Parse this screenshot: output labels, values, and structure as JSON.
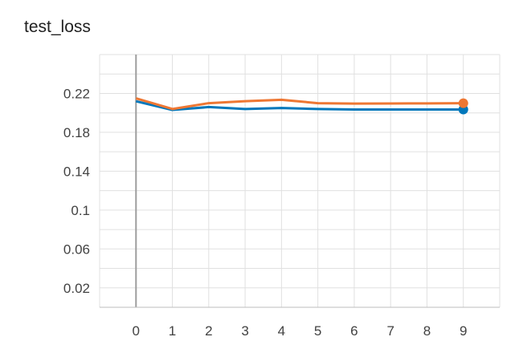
{
  "chart_data": {
    "type": "line",
    "title": "test_loss",
    "xlabel": "",
    "ylabel": "",
    "x": [
      0,
      1,
      2,
      3,
      4,
      5,
      6,
      7,
      8,
      9
    ],
    "xlim": [
      -1,
      10
    ],
    "ylim": [
      0.0,
      0.26
    ],
    "x_ticks": [
      "0",
      "1",
      "2",
      "3",
      "4",
      "5",
      "6",
      "7",
      "8",
      "9"
    ],
    "y_ticks": [
      "0.02",
      "0.06",
      "0.1",
      "0.14",
      "0.18",
      "0.22"
    ],
    "y_tick_values": [
      0.02,
      0.06,
      0.1,
      0.14,
      0.18,
      0.22
    ],
    "grid": true,
    "series": [
      {
        "color": "#0077bb",
        "values": [
          0.212,
          0.203,
          0.206,
          0.204,
          0.205,
          0.204,
          0.2035,
          0.2035,
          0.2035,
          0.2035
        ]
      },
      {
        "color": "#ee7733",
        "values": [
          0.215,
          0.204,
          0.21,
          0.212,
          0.2135,
          0.21,
          0.2095,
          0.2097,
          0.2098,
          0.21
        ]
      }
    ]
  }
}
